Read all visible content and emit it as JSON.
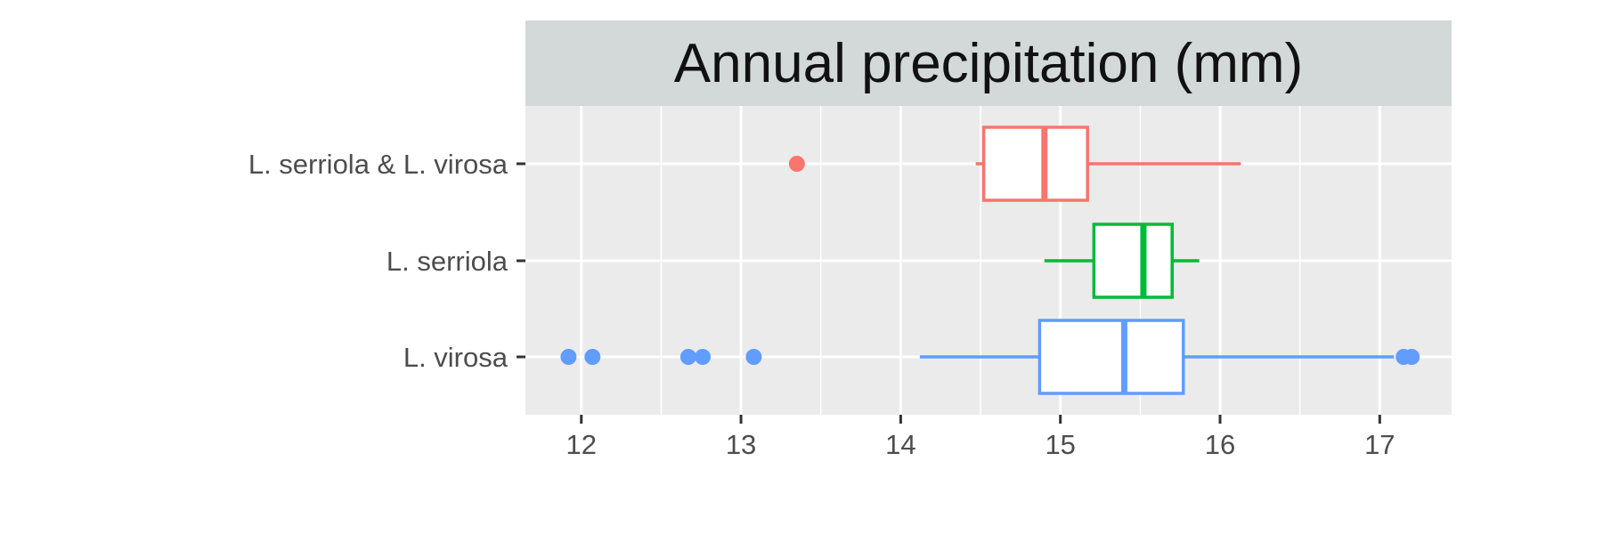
{
  "chart_data": {
    "type": "boxplot",
    "title": "Annual precipitation (mm)",
    "xlabel": "",
    "ylabel": "",
    "xlim": [
      11.65,
      17.45
    ],
    "x_ticks": [
      "12",
      "13",
      "14",
      "15",
      "16",
      "17"
    ],
    "x_tick_values": [
      12,
      13,
      14,
      15,
      16,
      17
    ],
    "grid": true,
    "legend": "none",
    "panel_background": "#ebebeb",
    "strip_background": "#d2d9d8",
    "categories": [
      "L. serriola & L. virosa",
      "L. serriola",
      "L. virosa"
    ],
    "series": [
      {
        "category": "L. serriola & L. virosa",
        "color": "#f8766d",
        "whisker_low": 14.47,
        "q1": 14.52,
        "median": 14.9,
        "q3": 15.17,
        "whisker_high": 16.13,
        "outliers": [
          13.35
        ]
      },
      {
        "category": "L. serriola",
        "color": "#00ba38",
        "whisker_low": 14.9,
        "q1": 15.21,
        "median": 15.52,
        "q3": 15.7,
        "whisker_high": 15.87,
        "outliers": []
      },
      {
        "category": "L. virosa",
        "color": "#619cff",
        "whisker_low": 14.12,
        "q1": 14.87,
        "median": 15.4,
        "q3": 15.77,
        "whisker_high": 17.09,
        "outliers": [
          11.92,
          12.07,
          12.67,
          12.76,
          13.08,
          17.15,
          17.2
        ]
      }
    ]
  }
}
